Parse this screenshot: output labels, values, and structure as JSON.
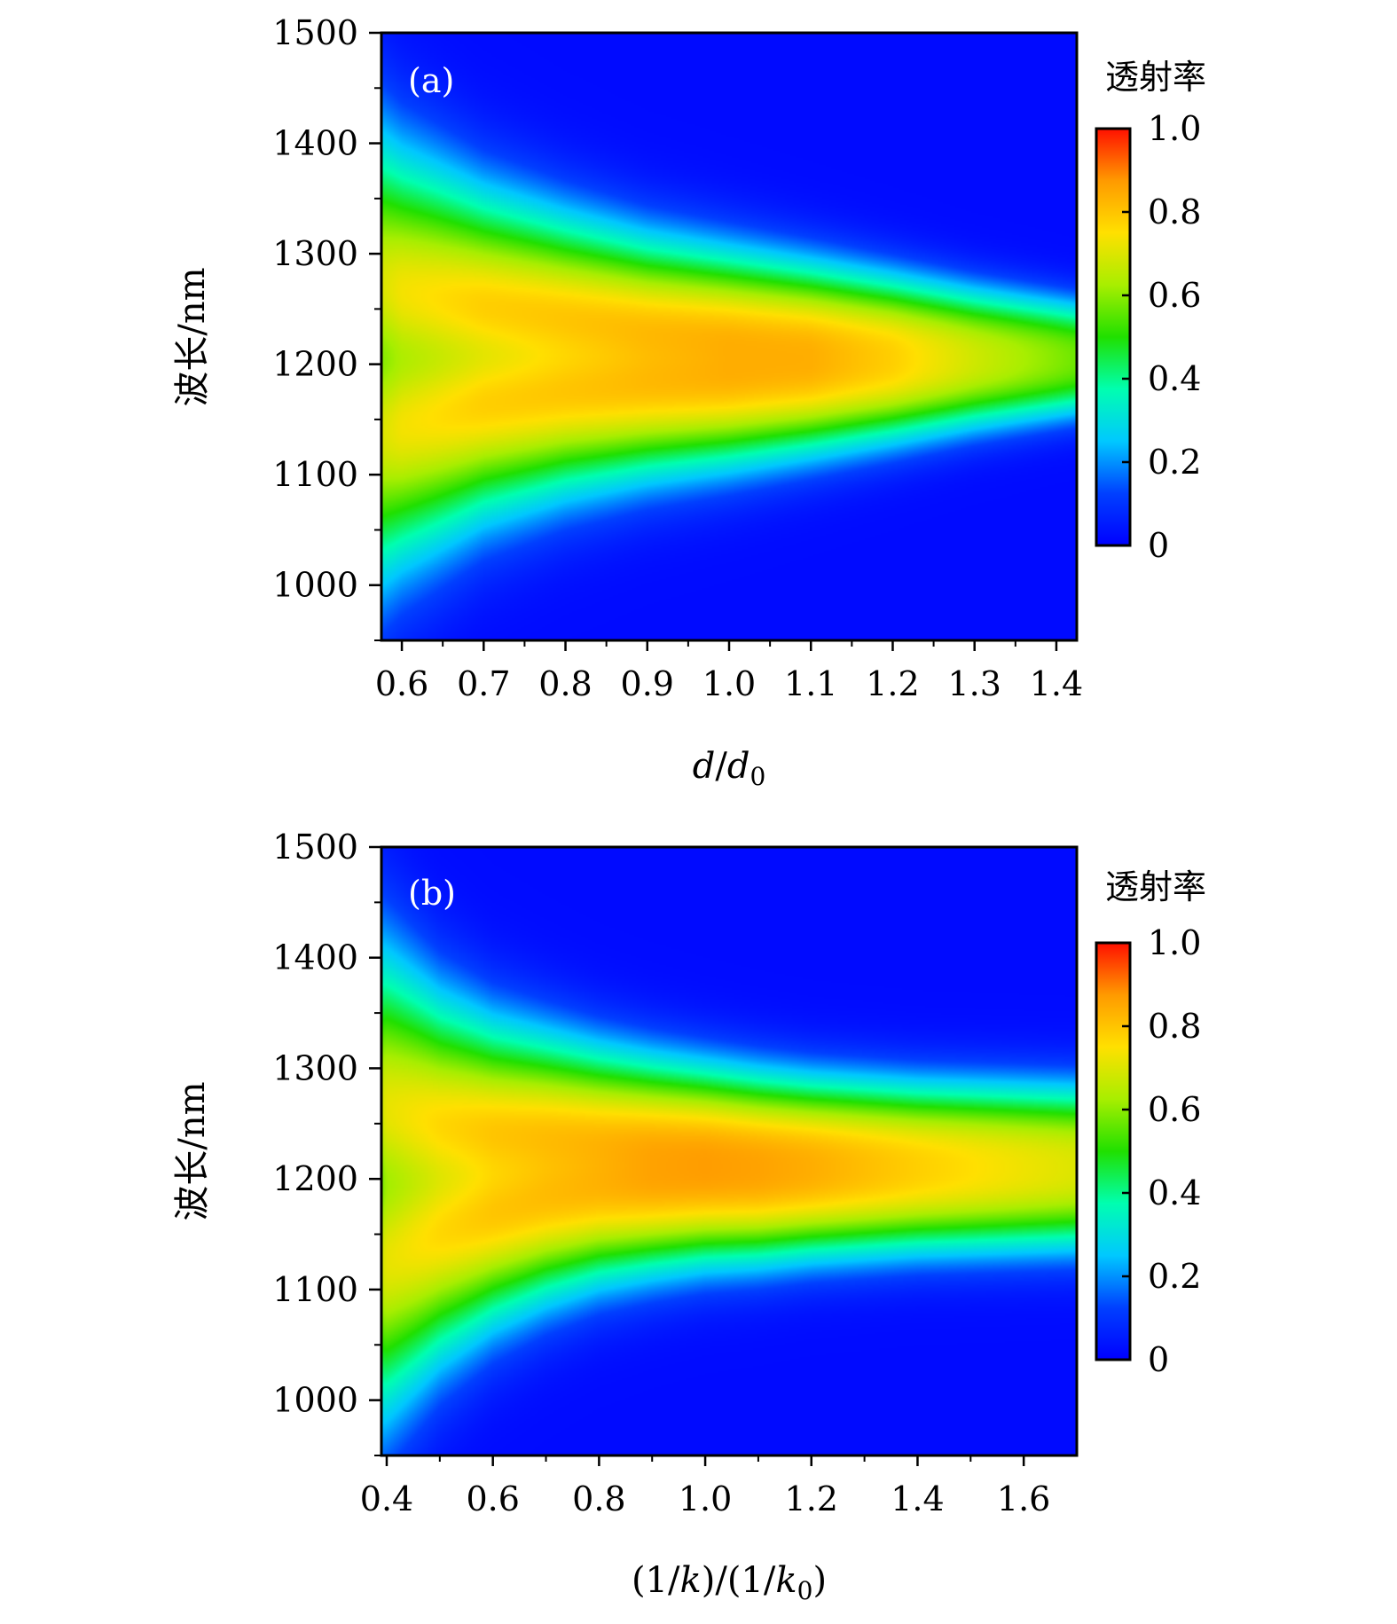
{
  "chart_data": [
    {
      "type": "heatmap",
      "panel_label": "(a)",
      "xlabel": "d/d0",
      "xlabel_parts": {
        "var": "d",
        "slash": "/",
        "var2": "d",
        "sub": "0"
      },
      "ylabel": "波长/nm",
      "xlim": [
        0.575,
        1.425
      ],
      "ylim": [
        950,
        1500
      ],
      "x_ticks": [
        0.6,
        0.7,
        0.8,
        0.9,
        1.0,
        1.1,
        1.2,
        1.3,
        1.4
      ],
      "x_tick_labels": [
        "0.6",
        "0.7",
        "0.8",
        "0.9",
        "1.0",
        "1.1",
        "1.2",
        "1.3",
        "1.4"
      ],
      "y_ticks": [
        1000,
        1100,
        1200,
        1300,
        1400,
        1500
      ],
      "y_tick_labels": [
        "1000",
        "1100",
        "1200",
        "1300",
        "1400",
        "1500"
      ],
      "colorbar": {
        "title": "透射率",
        "range": [
          0,
          1.0
        ],
        "ticks": [
          0,
          0.2,
          0.4,
          0.6,
          0.8,
          1.0
        ],
        "tick_labels": [
          "0",
          "0.2",
          "0.4",
          "0.6",
          "0.8",
          "1.0"
        ],
        "colormap": "jet"
      },
      "band": {
        "x": [
          0.575,
          0.6,
          0.7,
          0.8,
          0.9,
          1.0,
          1.1,
          1.2,
          1.3,
          1.425
        ],
        "center_nm": [
          1205,
          1205,
          1208,
          1208,
          1206,
          1205,
          1205,
          1205,
          1205,
          1205
        ],
        "half_width_nm": [
          185,
          170,
          135,
          115,
          100,
          90,
          80,
          70,
          60,
          50
        ],
        "peak_transmittance": [
          0.76,
          0.8,
          0.84,
          0.84,
          0.84,
          0.84,
          0.82,
          0.76,
          0.66,
          0.55
        ],
        "center_dip": [
          0.45,
          0.42,
          0.32,
          0.2,
          0.1,
          0.04,
          0.0,
          0.0,
          0.0,
          0.0
        ]
      }
    },
    {
      "type": "heatmap",
      "panel_label": "(b)",
      "xlabel": "(1/k)/(1/k0)",
      "xlabel_parts": {
        "p1": "(1/",
        "var": "k",
        "p2": ")/(1/",
        "var2": "k",
        "sub": "0",
        "p3": ")"
      },
      "ylabel": "波长/nm",
      "xlim": [
        0.39,
        1.7
      ],
      "ylim": [
        950,
        1500
      ],
      "x_ticks": [
        0.4,
        0.6,
        0.8,
        1.0,
        1.2,
        1.4,
        1.6
      ],
      "x_tick_labels": [
        "0.4",
        "0.6",
        "0.8",
        "1.0",
        "1.2",
        "1.4",
        "1.6"
      ],
      "y_ticks": [
        1000,
        1100,
        1200,
        1300,
        1400,
        1500
      ],
      "y_tick_labels": [
        "1000",
        "1100",
        "1200",
        "1300",
        "1400",
        "1500"
      ],
      "colorbar": {
        "title": "透射率",
        "range": [
          0,
          1.0
        ],
        "ticks": [
          0,
          0.2,
          0.4,
          0.6,
          0.8,
          1.0
        ],
        "tick_labels": [
          "0",
          "0.2",
          "0.4",
          "0.6",
          "0.8",
          "1.0"
        ],
        "colormap": "jet"
      },
      "band": {
        "x": [
          0.39,
          0.4,
          0.5,
          0.6,
          0.7,
          0.8,
          0.9,
          1.0,
          1.1,
          1.2,
          1.4,
          1.7
        ],
        "center_nm": [
          1195,
          1195,
          1200,
          1205,
          1210,
          1212,
          1212,
          1212,
          1210,
          1210,
          1210,
          1210
        ],
        "half_width_nm": [
          195,
          190,
          150,
          125,
          110,
          98,
          90,
          84,
          80,
          76,
          72,
          70
        ],
        "peak_transmittance": [
          0.74,
          0.78,
          0.82,
          0.84,
          0.84,
          0.84,
          0.85,
          0.85,
          0.84,
          0.82,
          0.76,
          0.68
        ],
        "center_dip": [
          0.45,
          0.42,
          0.3,
          0.2,
          0.12,
          0.06,
          0.02,
          0.0,
          0.0,
          0.0,
          0.0,
          0.0
        ]
      }
    }
  ]
}
